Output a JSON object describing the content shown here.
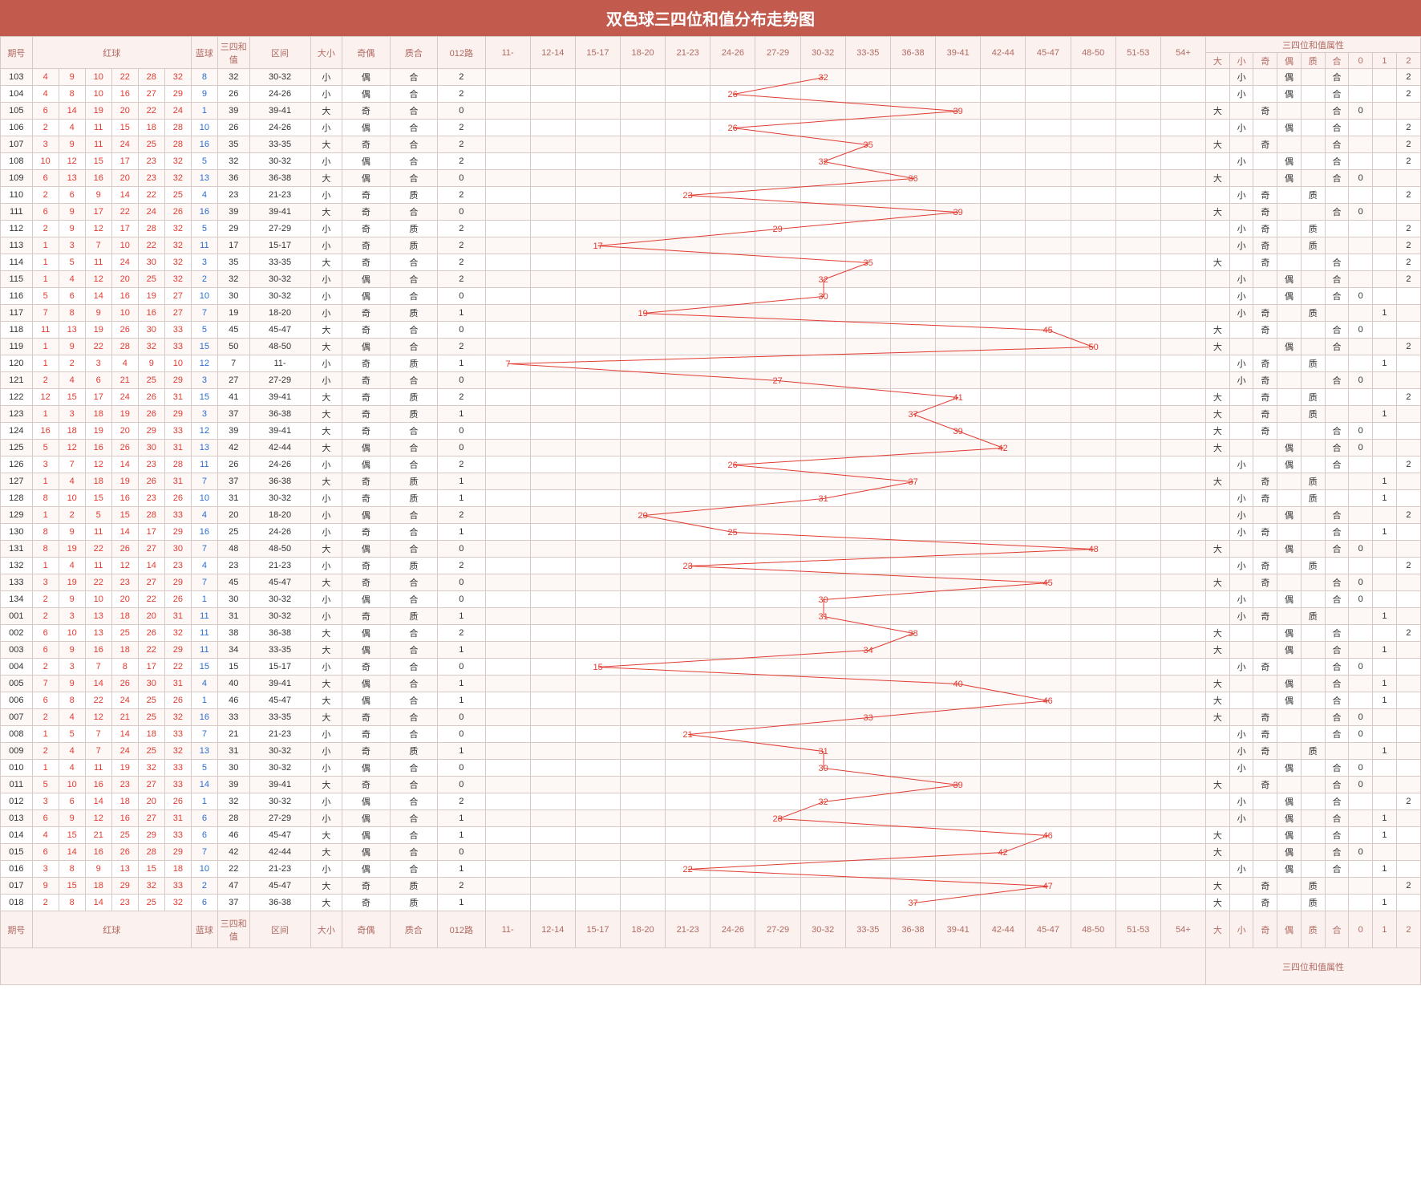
{
  "title": "双色球三四位和值分布走势图",
  "cols": {
    "period": "期号",
    "red": "红球",
    "blue": "蓝球",
    "sum": "三四和值",
    "range": "区间",
    "size": "大小",
    "parity": "奇偶",
    "prime": "质合",
    "mod3": "012路",
    "attr": "三四位和值属性",
    "attr_cols": [
      "大",
      "小",
      "奇",
      "偶",
      "质",
      "合",
      "0",
      "1",
      "2"
    ]
  },
  "ranges": [
    "11-",
    "12-14",
    "15-17",
    "18-20",
    "21-23",
    "24-26",
    "27-29",
    "30-32",
    "33-35",
    "36-38",
    "39-41",
    "42-44",
    "45-47",
    "48-50",
    "51-53",
    "54+"
  ],
  "range_bounds": [
    11,
    14,
    17,
    20,
    23,
    26,
    29,
    32,
    35,
    38,
    41,
    44,
    47,
    50,
    53,
    999
  ],
  "colors": {
    "red": "#e03c31",
    "blue": "#2a6dd2",
    "line": "#e03c31",
    "header_bg": "#fbf1ef",
    "header_fg": "#b26a62",
    "row_odd": "#fdf7f6",
    "row_even": "#ffffff",
    "border": "#d9c9c6",
    "title_bg": "#c25b4e"
  },
  "rows": [
    {
      "p": "103",
      "r": [
        4,
        9,
        10,
        22,
        28,
        32
      ],
      "b": 8,
      "s": 32,
      "rg": "30-32",
      "sz": "小",
      "pa": "偶",
      "pr": "合",
      "m": "2"
    },
    {
      "p": "104",
      "r": [
        4,
        8,
        10,
        16,
        27,
        29
      ],
      "b": 9,
      "s": 26,
      "rg": "24-26",
      "sz": "小",
      "pa": "偶",
      "pr": "合",
      "m": "2"
    },
    {
      "p": "105",
      "r": [
        6,
        14,
        19,
        20,
        22,
        24
      ],
      "b": 1,
      "s": 39,
      "rg": "39-41",
      "sz": "大",
      "pa": "奇",
      "pr": "合",
      "m": "0"
    },
    {
      "p": "106",
      "r": [
        2,
        4,
        11,
        15,
        18,
        28
      ],
      "b": 10,
      "s": 26,
      "rg": "24-26",
      "sz": "小",
      "pa": "偶",
      "pr": "合",
      "m": "2"
    },
    {
      "p": "107",
      "r": [
        3,
        9,
        11,
        24,
        25,
        28
      ],
      "b": 16,
      "s": 35,
      "rg": "33-35",
      "sz": "大",
      "pa": "奇",
      "pr": "合",
      "m": "2"
    },
    {
      "p": "108",
      "r": [
        10,
        12,
        15,
        17,
        23,
        32
      ],
      "b": 5,
      "s": 32,
      "rg": "30-32",
      "sz": "小",
      "pa": "偶",
      "pr": "合",
      "m": "2"
    },
    {
      "p": "109",
      "r": [
        6,
        13,
        16,
        20,
        23,
        32
      ],
      "b": 13,
      "s": 36,
      "rg": "36-38",
      "sz": "大",
      "pa": "偶",
      "pr": "合",
      "m": "0"
    },
    {
      "p": "110",
      "r": [
        2,
        6,
        9,
        14,
        22,
        25
      ],
      "b": 4,
      "s": 23,
      "rg": "21-23",
      "sz": "小",
      "pa": "奇",
      "pr": "质",
      "m": "2"
    },
    {
      "p": "111",
      "r": [
        6,
        9,
        17,
        22,
        24,
        26
      ],
      "b": 16,
      "s": 39,
      "rg": "39-41",
      "sz": "大",
      "pa": "奇",
      "pr": "合",
      "m": "0"
    },
    {
      "p": "112",
      "r": [
        2,
        9,
        12,
        17,
        28,
        32
      ],
      "b": 5,
      "s": 29,
      "rg": "27-29",
      "sz": "小",
      "pa": "奇",
      "pr": "质",
      "m": "2"
    },
    {
      "p": "113",
      "r": [
        1,
        3,
        7,
        10,
        22,
        32
      ],
      "b": 11,
      "s": 17,
      "rg": "15-17",
      "sz": "小",
      "pa": "奇",
      "pr": "质",
      "m": "2"
    },
    {
      "p": "114",
      "r": [
        1,
        5,
        11,
        24,
        30,
        32
      ],
      "b": 3,
      "s": 35,
      "rg": "33-35",
      "sz": "大",
      "pa": "奇",
      "pr": "合",
      "m": "2"
    },
    {
      "p": "115",
      "r": [
        1,
        4,
        12,
        20,
        25,
        32
      ],
      "b": 2,
      "s": 32,
      "rg": "30-32",
      "sz": "小",
      "pa": "偶",
      "pr": "合",
      "m": "2"
    },
    {
      "p": "116",
      "r": [
        5,
        6,
        14,
        16,
        19,
        27
      ],
      "b": 10,
      "s": 30,
      "rg": "30-32",
      "sz": "小",
      "pa": "偶",
      "pr": "合",
      "m": "0"
    },
    {
      "p": "117",
      "r": [
        7,
        8,
        9,
        10,
        16,
        27
      ],
      "b": 7,
      "s": 19,
      "rg": "18-20",
      "sz": "小",
      "pa": "奇",
      "pr": "质",
      "m": "1"
    },
    {
      "p": "118",
      "r": [
        11,
        13,
        19,
        26,
        30,
        33
      ],
      "b": 5,
      "s": 45,
      "rg": "45-47",
      "sz": "大",
      "pa": "奇",
      "pr": "合",
      "m": "0"
    },
    {
      "p": "119",
      "r": [
        1,
        9,
        22,
        28,
        32,
        33
      ],
      "b": 15,
      "s": 50,
      "rg": "48-50",
      "sz": "大",
      "pa": "偶",
      "pr": "合",
      "m": "2"
    },
    {
      "p": "120",
      "r": [
        1,
        2,
        3,
        4,
        9,
        10
      ],
      "b": 12,
      "s": 7,
      "rg": "11-",
      "sz": "小",
      "pa": "奇",
      "pr": "质",
      "m": "1"
    },
    {
      "p": "121",
      "r": [
        2,
        4,
        6,
        21,
        25,
        29
      ],
      "b": 3,
      "s": 27,
      "rg": "27-29",
      "sz": "小",
      "pa": "奇",
      "pr": "合",
      "m": "0"
    },
    {
      "p": "122",
      "r": [
        12,
        15,
        17,
        24,
        26,
        31
      ],
      "b": 15,
      "s": 41,
      "rg": "39-41",
      "sz": "大",
      "pa": "奇",
      "pr": "质",
      "m": "2"
    },
    {
      "p": "123",
      "r": [
        1,
        3,
        18,
        19,
        26,
        29
      ],
      "b": 3,
      "s": 37,
      "rg": "36-38",
      "sz": "大",
      "pa": "奇",
      "pr": "质",
      "m": "1"
    },
    {
      "p": "124",
      "r": [
        16,
        18,
        19,
        20,
        29,
        33
      ],
      "b": 12,
      "s": 39,
      "rg": "39-41",
      "sz": "大",
      "pa": "奇",
      "pr": "合",
      "m": "0"
    },
    {
      "p": "125",
      "r": [
        5,
        12,
        16,
        26,
        30,
        31
      ],
      "b": 13,
      "s": 42,
      "rg": "42-44",
      "sz": "大",
      "pa": "偶",
      "pr": "合",
      "m": "0"
    },
    {
      "p": "126",
      "r": [
        3,
        7,
        12,
        14,
        23,
        28
      ],
      "b": 11,
      "s": 26,
      "rg": "24-26",
      "sz": "小",
      "pa": "偶",
      "pr": "合",
      "m": "2"
    },
    {
      "p": "127",
      "r": [
        1,
        4,
        18,
        19,
        26,
        31
      ],
      "b": 7,
      "s": 37,
      "rg": "36-38",
      "sz": "大",
      "pa": "奇",
      "pr": "质",
      "m": "1"
    },
    {
      "p": "128",
      "r": [
        8,
        10,
        15,
        16,
        23,
        26
      ],
      "b": 10,
      "s": 31,
      "rg": "30-32",
      "sz": "小",
      "pa": "奇",
      "pr": "质",
      "m": "1"
    },
    {
      "p": "129",
      "r": [
        1,
        2,
        5,
        15,
        28,
        33
      ],
      "b": 4,
      "s": 20,
      "rg": "18-20",
      "sz": "小",
      "pa": "偶",
      "pr": "合",
      "m": "2"
    },
    {
      "p": "130",
      "r": [
        8,
        9,
        11,
        14,
        17,
        29
      ],
      "b": 16,
      "s": 25,
      "rg": "24-26",
      "sz": "小",
      "pa": "奇",
      "pr": "合",
      "m": "1"
    },
    {
      "p": "131",
      "r": [
        8,
        19,
        22,
        26,
        27,
        30
      ],
      "b": 7,
      "s": 48,
      "rg": "48-50",
      "sz": "大",
      "pa": "偶",
      "pr": "合",
      "m": "0"
    },
    {
      "p": "132",
      "r": [
        1,
        4,
        11,
        12,
        14,
        23
      ],
      "b": 4,
      "s": 23,
      "rg": "21-23",
      "sz": "小",
      "pa": "奇",
      "pr": "质",
      "m": "2"
    },
    {
      "p": "133",
      "r": [
        3,
        19,
        22,
        23,
        27,
        29
      ],
      "b": 7,
      "s": 45,
      "rg": "45-47",
      "sz": "大",
      "pa": "奇",
      "pr": "合",
      "m": "0"
    },
    {
      "p": "134",
      "r": [
        2,
        9,
        10,
        20,
        22,
        26
      ],
      "b": 1,
      "s": 30,
      "rg": "30-32",
      "sz": "小",
      "pa": "偶",
      "pr": "合",
      "m": "0"
    },
    {
      "p": "001",
      "r": [
        2,
        3,
        13,
        18,
        20,
        31
      ],
      "b": 11,
      "s": 31,
      "rg": "30-32",
      "sz": "小",
      "pa": "奇",
      "pr": "质",
      "m": "1"
    },
    {
      "p": "002",
      "r": [
        6,
        10,
        13,
        25,
        26,
        32
      ],
      "b": 11,
      "s": 38,
      "rg": "36-38",
      "sz": "大",
      "pa": "偶",
      "pr": "合",
      "m": "2"
    },
    {
      "p": "003",
      "r": [
        6,
        9,
        16,
        18,
        22,
        29
      ],
      "b": 11,
      "s": 34,
      "rg": "33-35",
      "sz": "大",
      "pa": "偶",
      "pr": "合",
      "m": "1"
    },
    {
      "p": "004",
      "r": [
        2,
        3,
        7,
        8,
        17,
        22
      ],
      "b": 15,
      "s": 15,
      "rg": "15-17",
      "sz": "小",
      "pa": "奇",
      "pr": "合",
      "m": "0"
    },
    {
      "p": "005",
      "r": [
        7,
        9,
        14,
        26,
        30,
        31
      ],
      "b": 4,
      "s": 40,
      "rg": "39-41",
      "sz": "大",
      "pa": "偶",
      "pr": "合",
      "m": "1"
    },
    {
      "p": "006",
      "r": [
        6,
        8,
        22,
        24,
        25,
        26
      ],
      "b": 1,
      "s": 46,
      "rg": "45-47",
      "sz": "大",
      "pa": "偶",
      "pr": "合",
      "m": "1"
    },
    {
      "p": "007",
      "r": [
        2,
        4,
        12,
        21,
        25,
        32
      ],
      "b": 16,
      "s": 33,
      "rg": "33-35",
      "sz": "大",
      "pa": "奇",
      "pr": "合",
      "m": "0"
    },
    {
      "p": "008",
      "r": [
        1,
        5,
        7,
        14,
        18,
        33
      ],
      "b": 7,
      "s": 21,
      "rg": "21-23",
      "sz": "小",
      "pa": "奇",
      "pr": "合",
      "m": "0"
    },
    {
      "p": "009",
      "r": [
        2,
        4,
        7,
        24,
        25,
        32
      ],
      "b": 13,
      "s": 31,
      "rg": "30-32",
      "sz": "小",
      "pa": "奇",
      "pr": "质",
      "m": "1"
    },
    {
      "p": "010",
      "r": [
        1,
        4,
        11,
        19,
        32,
        33
      ],
      "b": 5,
      "s": 30,
      "rg": "30-32",
      "sz": "小",
      "pa": "偶",
      "pr": "合",
      "m": "0"
    },
    {
      "p": "011",
      "r": [
        5,
        10,
        16,
        23,
        27,
        33
      ],
      "b": 14,
      "s": 39,
      "rg": "39-41",
      "sz": "大",
      "pa": "奇",
      "pr": "合",
      "m": "0"
    },
    {
      "p": "012",
      "r": [
        3,
        6,
        14,
        18,
        20,
        26
      ],
      "b": 1,
      "s": 32,
      "rg": "30-32",
      "sz": "小",
      "pa": "偶",
      "pr": "合",
      "m": "2"
    },
    {
      "p": "013",
      "r": [
        6,
        9,
        12,
        16,
        27,
        31
      ],
      "b": 6,
      "s": 28,
      "rg": "27-29",
      "sz": "小",
      "pa": "偶",
      "pr": "合",
      "m": "1"
    },
    {
      "p": "014",
      "r": [
        4,
        15,
        21,
        25,
        29,
        33
      ],
      "b": 6,
      "s": 46,
      "rg": "45-47",
      "sz": "大",
      "pa": "偶",
      "pr": "合",
      "m": "1"
    },
    {
      "p": "015",
      "r": [
        6,
        14,
        16,
        26,
        28,
        29
      ],
      "b": 7,
      "s": 42,
      "rg": "42-44",
      "sz": "大",
      "pa": "偶",
      "pr": "合",
      "m": "0"
    },
    {
      "p": "016",
      "r": [
        3,
        8,
        9,
        13,
        15,
        18
      ],
      "b": 10,
      "s": 22,
      "rg": "21-23",
      "sz": "小",
      "pa": "偶",
      "pr": "合",
      "m": "1"
    },
    {
      "p": "017",
      "r": [
        9,
        15,
        18,
        29,
        32,
        33
      ],
      "b": 2,
      "s": 47,
      "rg": "45-47",
      "sz": "大",
      "pa": "奇",
      "pr": "质",
      "m": "2"
    },
    {
      "p": "018",
      "r": [
        2,
        8,
        14,
        23,
        25,
        32
      ],
      "b": 6,
      "s": 37,
      "rg": "36-38",
      "sz": "大",
      "pa": "奇",
      "pr": "质",
      "m": "1"
    }
  ]
}
